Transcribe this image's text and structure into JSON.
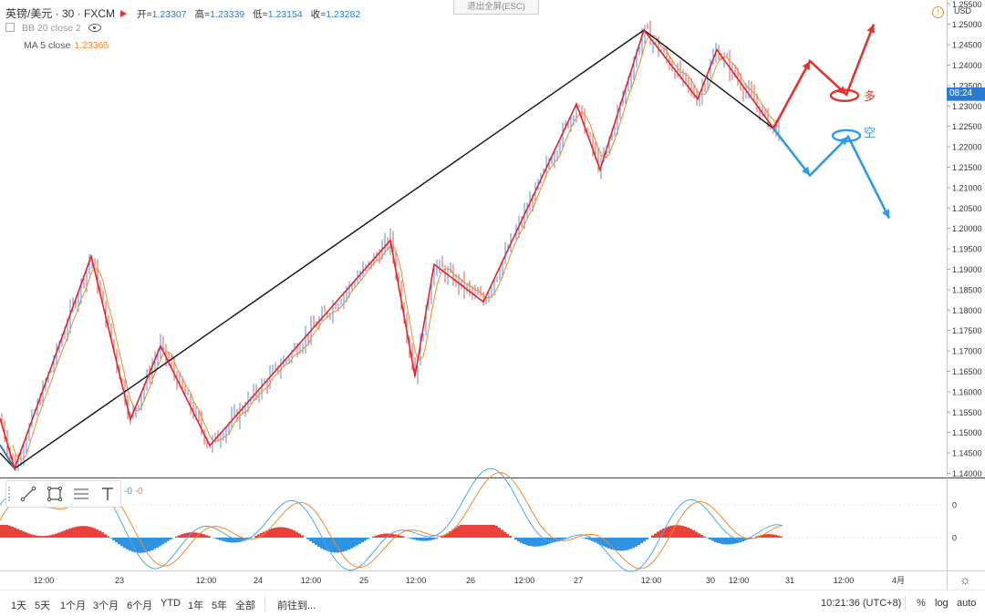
{
  "header": {
    "symbol": "英镑/美元 · 30 · FXCM",
    "open_label": "开=",
    "open": "1.23307",
    "high_label": "高=",
    "high": "1.23339",
    "low_label": "低=",
    "low": "1.23154",
    "close_label": "收=",
    "close": "1.23282",
    "bb_label": "BB 20 close 2",
    "ma_label": "MA 5 close",
    "ma_value": "1.23365",
    "fullscreen_exit": "退出全屏(ESC)"
  },
  "axis": {
    "currency": "USD",
    "price_ticks": [
      "1.25500",
      "1.25000",
      "1.24500",
      "1.24000",
      "1.23500",
      "1.23000",
      "1.22500",
      "1.22000",
      "1.21500",
      "1.21000",
      "1.20500",
      "1.20000",
      "1.19500",
      "1.19000",
      "1.18500",
      "1.18000",
      "1.17500",
      "1.17000",
      "1.16500",
      "1.16000",
      "1.15500",
      "1.15000",
      "1.14500",
      "1.14000"
    ],
    "countdown": "08:24",
    "osc_ticks": [
      "0",
      "0"
    ],
    "time_labels": [
      "12:00",
      "23",
      "12:00",
      "24",
      "12:00",
      "25",
      "12:00",
      "26",
      "12:00",
      "27",
      "12:00",
      "30",
      "12:00",
      "31",
      "12:00",
      "4月",
      "12:00"
    ]
  },
  "annotations": {
    "long": "多",
    "short": "空"
  },
  "oscillator": {
    "label_a": "-0",
    "label_b": "-0"
  },
  "bottom_bar": {
    "ranges": [
      "1天",
      "5天",
      "1个月",
      "3个月",
      "6个月",
      "YTD",
      "1年",
      "5年",
      "全部"
    ],
    "goto": "前往到...",
    "clock": "10:21:36 (UTC+8)",
    "percent": "%",
    "log": "log",
    "auto": "auto"
  },
  "colors": {
    "up_arrow": "#e53229",
    "down_arrow": "#2f9ae8",
    "zigzag": "#e0262b",
    "trend_line": "#111111",
    "candle_up": "#5b8fd6",
    "candle_down": "#e05a4f",
    "ma_line": "#f5862b",
    "bb_line": "#4aa8ea",
    "hist_pos": "#e8433a",
    "hist_neg": "#2f93e3"
  },
  "chart_data": {
    "type": "line",
    "title": "英镑/美元 · 30 · FXCM",
    "ylim": [
      1.14,
      1.255
    ],
    "x_time_labels": [
      "12:00",
      "23",
      "12:00",
      "24",
      "12:00",
      "25",
      "12:00",
      "26",
      "12:00",
      "27",
      "12:00",
      "30",
      "12:00",
      "31",
      "12:00",
      "4月",
      "12:00"
    ],
    "series": [
      {
        "name": "",
        "x": [
          0,
          16,
          100,
          143,
          176,
          230,
          428,
          455,
          476,
          530,
          632,
          658,
          706,
          765,
          786,
          848
        ],
        "y": [
          1.1535,
          1.1412,
          1.1932,
          1.1532,
          1.1712,
          1.1468,
          1.1971,
          1.1638,
          1.1912,
          1.182,
          1.2305,
          1.2144,
          1.2486,
          1.2317,
          1.2438,
          1.2245
        ]
      },
      {
        "name": "",
        "x": [
          0,
          16,
          706,
          848
        ],
        "y": [
          1.145,
          1.1412,
          1.2486,
          1.2245
        ]
      }
    ],
    "projections": {
      "long": {
        "label": "多",
        "x": [
          848,
          888,
          928,
          958
        ],
        "y": [
          1.2245,
          1.241,
          1.2328,
          1.25
        ]
      },
      "short": {
        "label": "空",
        "x": [
          848,
          888,
          930,
          975
        ],
        "y": [
          1.2245,
          1.213,
          1.2225,
          1.2025
        ]
      }
    },
    "last_close": 1.23282
  }
}
